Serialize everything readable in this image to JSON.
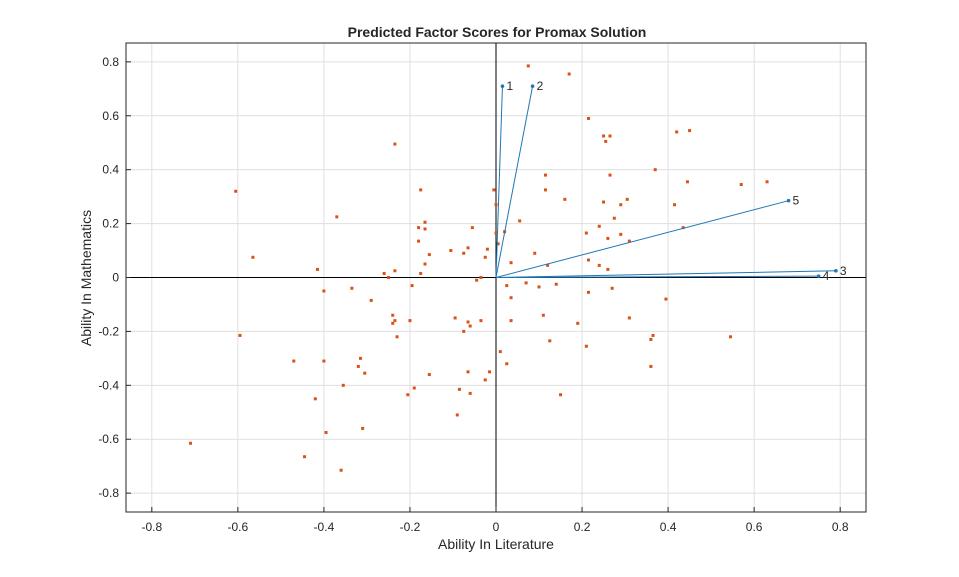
{
  "chart_data": {
    "type": "scatter",
    "title": "Predicted Factor Scores for Promax Solution",
    "xlabel": "Ability In Literature",
    "ylabel": "Ability In Mathematics",
    "xlim": [
      -0.86,
      0.86
    ],
    "ylim": [
      -0.87,
      0.87
    ],
    "xticks": [
      -0.8,
      -0.6,
      -0.4,
      -0.2,
      0,
      0.2,
      0.4,
      0.6,
      0.8
    ],
    "yticks": [
      -0.8,
      -0.6,
      -0.4,
      -0.2,
      0,
      0.2,
      0.4,
      0.6,
      0.8
    ],
    "xticklabels": [
      "-0.8",
      "-0.6",
      "-0.4",
      "-0.2",
      "0",
      "0.2",
      "0.4",
      "0.6",
      "0.8"
    ],
    "yticklabels": [
      "-0.8",
      "-0.6",
      "-0.4",
      "-0.2",
      "0",
      "0.2",
      "0.4",
      "0.6",
      "0.8"
    ],
    "grid": true,
    "colors": {
      "vectors": "#1f77b4",
      "scores": "#d95319",
      "axes": "#000000",
      "grid": "#dfdfdf"
    },
    "loading_vectors": [
      {
        "label": "1",
        "x": 0.015,
        "y": 0.71
      },
      {
        "label": "2",
        "x": 0.085,
        "y": 0.71
      },
      {
        "label": "3",
        "x": 0.79,
        "y": 0.025
      },
      {
        "label": "4",
        "x": 0.75,
        "y": 0.005
      },
      {
        "label": "5",
        "x": 0.68,
        "y": 0.285
      }
    ],
    "scores": [
      [
        0.075,
        0.785
      ],
      [
        0.17,
        0.755
      ],
      [
        0.215,
        0.59
      ],
      [
        0.25,
        0.525
      ],
      [
        0.265,
        0.525
      ],
      [
        0.255,
        0.505
      ],
      [
        0.42,
        0.54
      ],
      [
        0.45,
        0.545
      ],
      [
        -0.235,
        0.495
      ],
      [
        0.37,
        0.4
      ],
      [
        0.265,
        0.38
      ],
      [
        0.115,
        0.38
      ],
      [
        0.445,
        0.355
      ],
      [
        0.57,
        0.345
      ],
      [
        0.63,
        0.355
      ],
      [
        0.115,
        0.325
      ],
      [
        -0.605,
        0.32
      ],
      [
        -0.175,
        0.325
      ],
      [
        -0.005,
        0.325
      ],
      [
        0.16,
        0.29
      ],
      [
        0.305,
        0.29
      ],
      [
        0.25,
        0.28
      ],
      [
        0.29,
        0.27
      ],
      [
        0.415,
        0.27
      ],
      [
        0.0,
        0.27
      ],
      [
        -0.37,
        0.225
      ],
      [
        0.055,
        0.21
      ],
      [
        -0.165,
        0.205
      ],
      [
        0.275,
        0.22
      ],
      [
        -0.18,
        0.185
      ],
      [
        -0.165,
        0.18
      ],
      [
        -0.055,
        0.185
      ],
      [
        0.24,
        0.19
      ],
      [
        0.435,
        0.185
      ],
      [
        0.21,
        0.165
      ],
      [
        0.29,
        0.16
      ],
      [
        0.0,
        0.165
      ],
      [
        0.02,
        0.17
      ],
      [
        0.26,
        0.145
      ],
      [
        0.31,
        0.135
      ],
      [
        -0.18,
        0.135
      ],
      [
        0.005,
        0.125
      ],
      [
        -0.065,
        0.11
      ],
      [
        -0.105,
        0.1
      ],
      [
        -0.02,
        0.105
      ],
      [
        0.09,
        0.09
      ],
      [
        -0.155,
        0.085
      ],
      [
        -0.075,
        0.09
      ],
      [
        -0.565,
        0.075
      ],
      [
        -0.025,
        0.075
      ],
      [
        -0.165,
        0.05
      ],
      [
        0.035,
        0.055
      ],
      [
        0.12,
        0.045
      ],
      [
        0.215,
        0.065
      ],
      [
        0.24,
        0.045
      ],
      [
        0.26,
        0.03
      ],
      [
        -0.415,
        0.03
      ],
      [
        -0.235,
        0.025
      ],
      [
        -0.26,
        0.015
      ],
      [
        -0.25,
        0.0
      ],
      [
        -0.175,
        0.015
      ],
      [
        -0.045,
        -0.01
      ],
      [
        -0.035,
        0.0
      ],
      [
        0.025,
        -0.03
      ],
      [
        0.07,
        -0.02
      ],
      [
        0.1,
        -0.035
      ],
      [
        0.14,
        -0.025
      ],
      [
        0.27,
        -0.04
      ],
      [
        -0.195,
        -0.03
      ],
      [
        -0.4,
        -0.05
      ],
      [
        -0.335,
        -0.04
      ],
      [
        -0.29,
        -0.085
      ],
      [
        0.035,
        -0.075
      ],
      [
        0.215,
        -0.055
      ],
      [
        0.395,
        -0.08
      ],
      [
        -0.24,
        -0.14
      ],
      [
        -0.235,
        -0.16
      ],
      [
        -0.24,
        -0.17
      ],
      [
        -0.2,
        -0.16
      ],
      [
        -0.095,
        -0.15
      ],
      [
        -0.065,
        -0.165
      ],
      [
        -0.06,
        -0.18
      ],
      [
        -0.035,
        -0.16
      ],
      [
        0.11,
        -0.14
      ],
      [
        0.035,
        -0.16
      ],
      [
        0.19,
        -0.17
      ],
      [
        0.31,
        -0.15
      ],
      [
        -0.595,
        -0.215
      ],
      [
        -0.075,
        -0.2
      ],
      [
        -0.23,
        -0.22
      ],
      [
        0.125,
        -0.235
      ],
      [
        0.365,
        -0.215
      ],
      [
        0.36,
        -0.23
      ],
      [
        0.545,
        -0.22
      ],
      [
        0.21,
        -0.255
      ],
      [
        0.01,
        -0.275
      ],
      [
        -0.47,
        -0.31
      ],
      [
        -0.4,
        -0.31
      ],
      [
        -0.315,
        -0.3
      ],
      [
        -0.32,
        -0.33
      ],
      [
        0.025,
        -0.32
      ],
      [
        0.36,
        -0.33
      ],
      [
        -0.305,
        -0.355
      ],
      [
        -0.065,
        -0.35
      ],
      [
        -0.155,
        -0.36
      ],
      [
        -0.015,
        -0.35
      ],
      [
        -0.025,
        -0.38
      ],
      [
        -0.355,
        -0.4
      ],
      [
        -0.19,
        -0.41
      ],
      [
        -0.085,
        -0.415
      ],
      [
        -0.06,
        -0.43
      ],
      [
        -0.205,
        -0.435
      ],
      [
        0.15,
        -0.435
      ],
      [
        -0.42,
        -0.45
      ],
      [
        -0.09,
        -0.51
      ],
      [
        -0.31,
        -0.56
      ],
      [
        -0.395,
        -0.575
      ],
      [
        -0.71,
        -0.615
      ],
      [
        -0.445,
        -0.665
      ],
      [
        -0.36,
        -0.715
      ]
    ]
  }
}
